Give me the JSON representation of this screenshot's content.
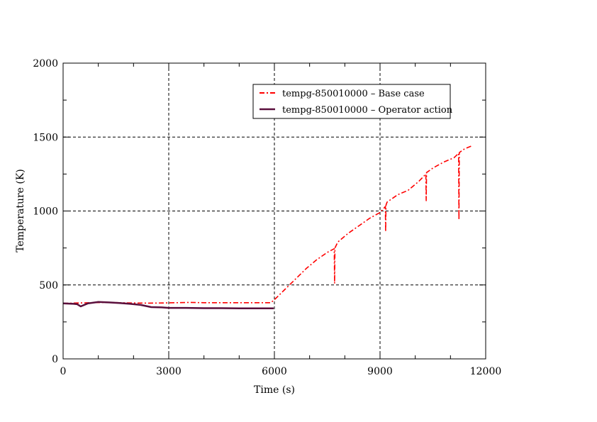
{
  "chart_data": {
    "type": "line",
    "title": "",
    "xlabel": "Time (s)",
    "ylabel": "Temperature (K)",
    "xlim": [
      0,
      12000
    ],
    "ylim": [
      0,
      2000
    ],
    "x_ticks": [
      0,
      3000,
      6000,
      9000,
      12000
    ],
    "y_ticks": [
      0,
      500,
      1000,
      1500,
      2000
    ],
    "x_tick_labels": [
      "0",
      "3000",
      "6000",
      "9000",
      "12000"
    ],
    "y_tick_labels": [
      "0",
      "500",
      "1000",
      "1500",
      "2000"
    ],
    "grid": true,
    "legend_position": "top-right",
    "series": [
      {
        "name": "tempg-850010000 – Base case",
        "color": "#ff0000",
        "style": "dash-dot",
        "x": [
          0,
          400,
          800,
          1200,
          1600,
          2000,
          2400,
          2800,
          3200,
          3600,
          4000,
          4400,
          4800,
          5200,
          5600,
          5900,
          6000,
          6300,
          6600,
          6900,
          7200,
          7500,
          7700,
          7710,
          7720,
          7800,
          8100,
          8400,
          8700,
          9000,
          9150,
          9160,
          9170,
          9200,
          9500,
          9800,
          10100,
          10300,
          10310,
          10320,
          10500,
          10800,
          11100,
          11230,
          11240,
          11250,
          11400,
          11600
        ],
        "y": [
          375,
          378,
          380,
          382,
          380,
          378,
          377,
          378,
          380,
          382,
          380,
          380,
          380,
          380,
          380,
          380,
          400,
          470,
          540,
          610,
          670,
          720,
          745,
          510,
          750,
          790,
          850,
          900,
          950,
          990,
          1030,
          860,
          1040,
          1060,
          1110,
          1140,
          1200,
          1250,
          1070,
          1260,
          1290,
          1330,
          1360,
          1390,
          940,
          1395,
          1420,
          1440
        ]
      },
      {
        "name": "tempg-850010000 – Operator action",
        "color": "#5a0f3c",
        "style": "solid",
        "x": [
          0,
          300,
          400,
          500,
          700,
          1000,
          1300,
          1600,
          1900,
          2200,
          2500,
          2800,
          3000,
          3500,
          4000,
          4500,
          5000,
          5500,
          5900,
          5980
        ],
        "y": [
          375,
          372,
          370,
          355,
          375,
          385,
          382,
          378,
          372,
          365,
          350,
          348,
          345,
          345,
          343,
          343,
          342,
          342,
          342,
          342
        ]
      }
    ]
  }
}
